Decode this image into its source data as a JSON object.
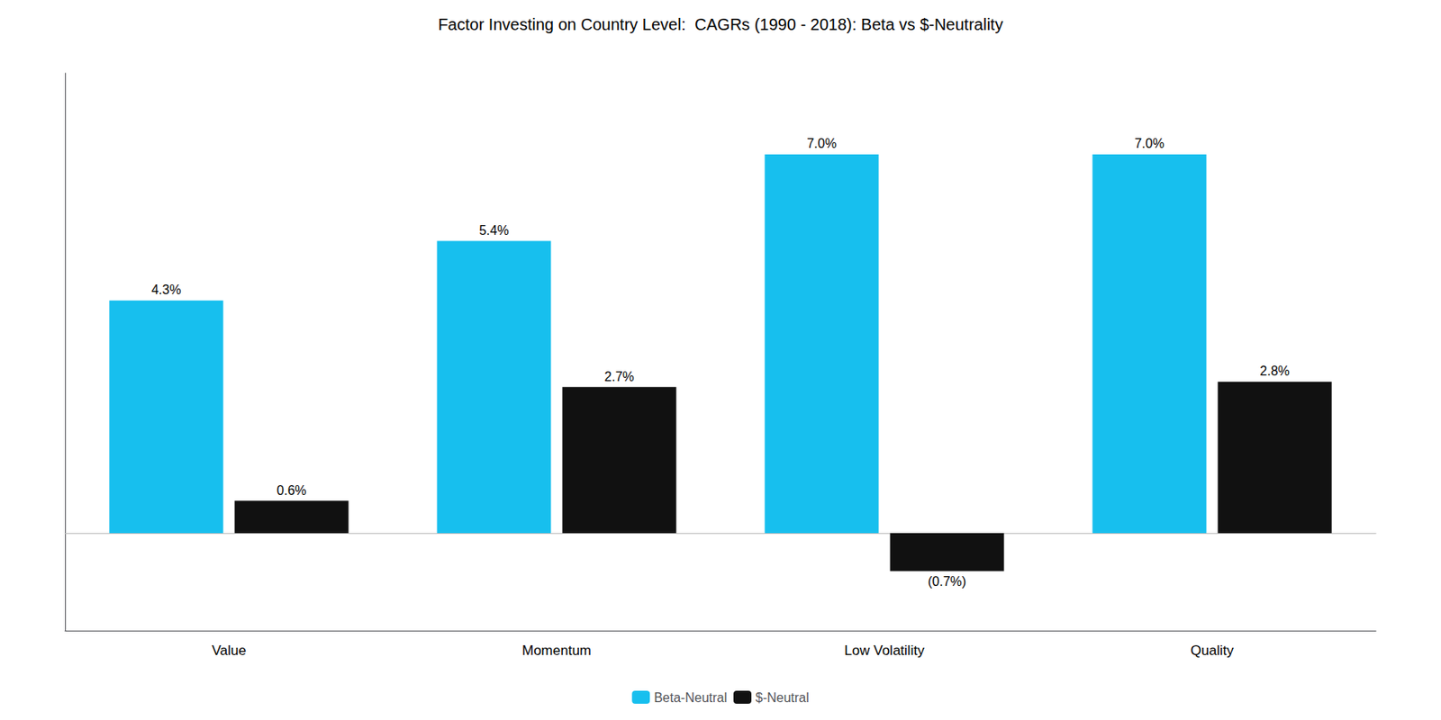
{
  "chart_data": {
    "type": "bar",
    "title": "Factor Investing on Country Level:  CAGRs (1990 - 2018): Beta vs $-Neutrality",
    "categories": [
      "Value",
      "Momentum",
      "Low Volatility",
      "Quality"
    ],
    "series": [
      {
        "name": "Beta-Neutral",
        "color": "#17BFEE",
        "values": [
          4.3,
          5.4,
          7.0,
          7.0
        ],
        "value_labels": [
          "4.3%",
          "5.4%",
          "7.0%",
          "7.0%"
        ]
      },
      {
        "name": "$-Neutral",
        "color": "#111111",
        "values": [
          0.6,
          2.7,
          -0.7,
          2.8
        ],
        "value_labels": [
          "0.6%",
          "2.7%",
          "(0.7%)",
          "2.8%"
        ]
      }
    ],
    "ylim": [
      -1.8,
      8.5
    ],
    "yticks": [],
    "data_labels": true,
    "tick_labels": "x",
    "grid": false,
    "legend": "bottom"
  }
}
